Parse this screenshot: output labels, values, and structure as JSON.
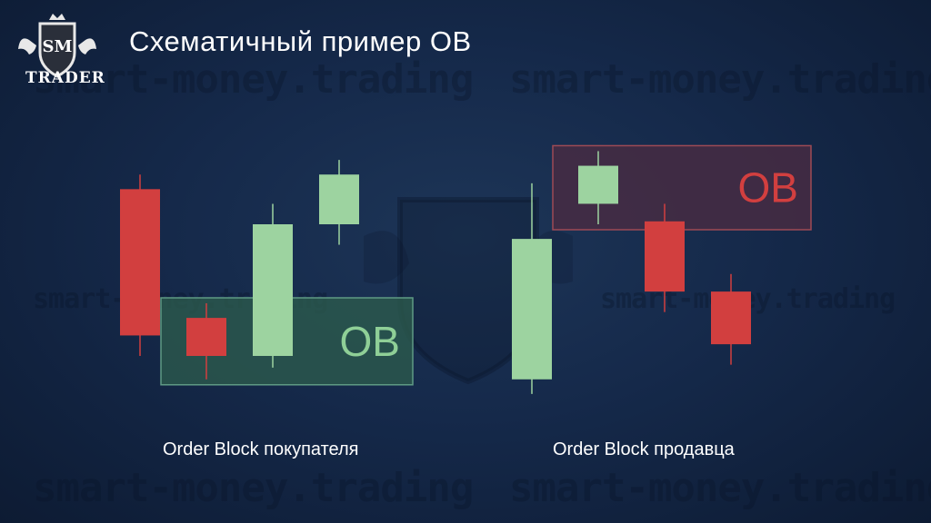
{
  "watermark_text": "smart-money.trading",
  "logo": {
    "initials": "SM",
    "name": "TRADER"
  },
  "title": "Схематичный пример OB",
  "colors": {
    "bull": "#9dd3a0",
    "bear": "#d23f3f",
    "ob_buy_fill": "#2c5a4c",
    "ob_sell_fill": "#4a2c42"
  },
  "buyer_panel": {
    "caption": "Order Block покупателя",
    "ob_label": "OB",
    "candles": [
      {
        "dir": "bear",
        "open": 95,
        "close": 45,
        "high": 100,
        "low": 38
      },
      {
        "dir": "bear",
        "open": 51,
        "close": 38,
        "high": 56,
        "low": 30
      },
      {
        "dir": "bull",
        "open": 38,
        "close": 83,
        "high": 90,
        "lo w": 34
      },
      {
        "dir": "bull",
        "open": 83,
        "close": 100,
        "high": 105,
        "low": 76
      }
    ]
  },
  "seller_panel": {
    "caption": "Order Block продавца",
    "ob_label": "OB",
    "candles": [
      {
        "dir": "bull",
        "open": 30,
        "close": 78,
        "high": 97,
        "low": 25
      },
      {
        "dir": "bull",
        "open": 90,
        "close": 103,
        "high": 108,
        "low": 83
      },
      {
        "dir": "bear",
        "open": 84,
        "close": 60,
        "high": 90,
        "low": 53
      },
      {
        "dir": "bear",
        "open": 60,
        "close": 42,
        "high": 66,
        "low": 35
      }
    ]
  }
}
